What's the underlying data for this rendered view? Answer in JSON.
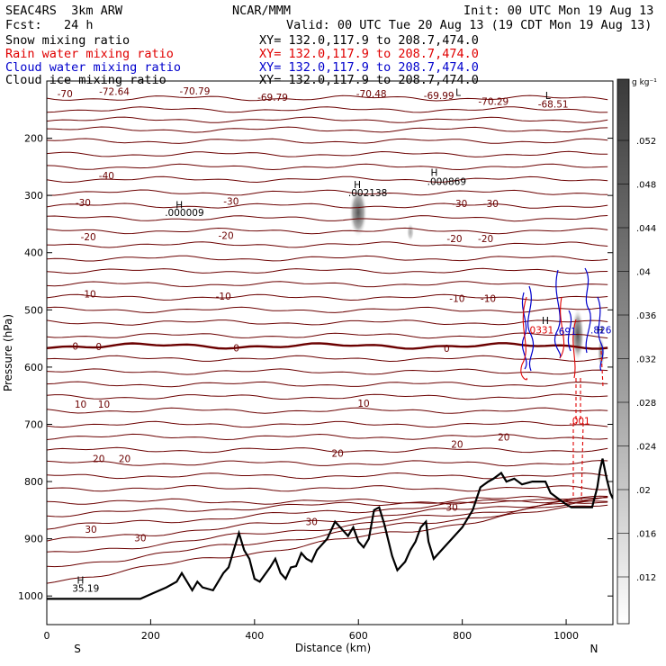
{
  "header": {
    "model": "SEAC4RS  3km ARW",
    "org": "NCAR/MMM",
    "init": "Init: 00 UTC Mon 19 Aug 13",
    "fcst": "Fcst:   24 h",
    "valid": "Valid: 00 UTC Tue 20 Aug 13 (19 CDT Mon 19 Aug 13)",
    "fields": [
      {
        "label": "Snow mixing ratio",
        "xy": "XY= 132.0,117.9 to 208.7,474.0",
        "color": "#000000"
      },
      {
        "label": "Rain water mixing ratio",
        "xy": "XY= 132.0,117.9 to 208.7,474.0",
        "color": "#e00000"
      },
      {
        "label": "Cloud water mixing ratio",
        "xy": "XY= 132.0,117.9 to 208.7,474.0",
        "color": "#0000cc"
      },
      {
        "label": "Cloud ice mixing ratio",
        "xy": "XY= 132.0,117.9 to 208.7,474.0",
        "color": "#000000"
      }
    ]
  },
  "chart_data": {
    "type": "contour",
    "xlabel": "Distance (km)",
    "ylabel": "Pressure (hPa)",
    "xlim": [
      0,
      1090
    ],
    "ylim": [
      1050,
      100
    ],
    "x_ticks": [
      "0",
      "200",
      "400",
      "600",
      "800",
      "1000"
    ],
    "y_ticks": [
      "200",
      "300",
      "400",
      "500",
      "600",
      "700",
      "800",
      "900",
      "1000"
    ],
    "x_end_labels": [
      "S",
      "N"
    ],
    "colorbar": {
      "unit": "g kg⁻¹",
      "labels": [
        ".052",
        ".048",
        ".044",
        ".04",
        ".036",
        ".032",
        ".028",
        ".024",
        ".02",
        ".016",
        ".012"
      ]
    },
    "temperature_contours_C": [
      -70,
      -60,
      -50,
      -40,
      -30,
      -20,
      -10,
      0,
      10,
      20,
      30
    ],
    "contour_labels": [
      {
        "text": "-70",
        "x": 35,
        "p": 122
      },
      {
        "text": "-72.64",
        "x": 130,
        "p": 118
      },
      {
        "text": "-70.79",
        "x": 285,
        "p": 117
      },
      {
        "text": "-69.79",
        "x": 435,
        "p": 128
      },
      {
        "text": "-70.48",
        "x": 625,
        "p": 122
      },
      {
        "text": "-69.99",
        "x": 755,
        "p": 125
      },
      {
        "text": "-70.29",
        "x": 860,
        "p": 135
      },
      {
        "text": "-68.51",
        "x": 975,
        "p": 140
      },
      {
        "text": "-40",
        "x": 115,
        "p": 265
      },
      {
        "text": "-30",
        "x": 70,
        "p": 312
      },
      {
        "text": "-30",
        "x": 355,
        "p": 310
      },
      {
        "text": "-30",
        "x": 795,
        "p": 314
      },
      {
        "text": "-30",
        "x": 855,
        "p": 314
      },
      {
        "text": "-20",
        "x": 80,
        "p": 372
      },
      {
        "text": "-20",
        "x": 345,
        "p": 370
      },
      {
        "text": "-20",
        "x": 785,
        "p": 375
      },
      {
        "text": "-20",
        "x": 845,
        "p": 375
      },
      {
        "text": "-10",
        "x": 80,
        "p": 472
      },
      {
        "text": "-10",
        "x": 340,
        "p": 476
      },
      {
        "text": "-10",
        "x": 790,
        "p": 480
      },
      {
        "text": "-10",
        "x": 850,
        "p": 480
      },
      {
        "text": "0",
        "x": 55,
        "p": 563
      },
      {
        "text": "0",
        "x": 100,
        "p": 564
      },
      {
        "text": "0",
        "x": 365,
        "p": 566
      },
      {
        "text": "0",
        "x": 770,
        "p": 567
      },
      {
        "text": "10",
        "x": 65,
        "p": 665
      },
      {
        "text": "10",
        "x": 110,
        "p": 665
      },
      {
        "text": "10",
        "x": 610,
        "p": 663
      },
      {
        "text": "20",
        "x": 100,
        "p": 760
      },
      {
        "text": "20",
        "x": 150,
        "p": 760
      },
      {
        "text": "20",
        "x": 560,
        "p": 750
      },
      {
        "text": "20",
        "x": 790,
        "p": 735
      },
      {
        "text": "20",
        "x": 880,
        "p": 722
      },
      {
        "text": "30",
        "x": 85,
        "p": 883
      },
      {
        "text": "30",
        "x": 180,
        "p": 898
      },
      {
        "text": "30",
        "x": 510,
        "p": 870
      },
      {
        "text": "30",
        "x": 780,
        "p": 845
      }
    ],
    "extrema_labels": [
      {
        "text": "H",
        "x": 255,
        "p": 316
      },
      {
        "text": ".000009",
        "x": 265,
        "p": 330
      },
      {
        "text": "H",
        "x": 598,
        "p": 281
      },
      {
        "text": ".002138",
        "x": 618,
        "p": 295
      },
      {
        "text": "H",
        "x": 746,
        "p": 260
      },
      {
        "text": ".000869",
        "x": 770,
        "p": 275
      },
      {
        "text": "H",
        "x": 65,
        "p": 972
      },
      {
        "text": "35.19",
        "x": 75,
        "p": 986
      },
      {
        "text": "L",
        "x": 792,
        "p": 120
      },
      {
        "text": "L",
        "x": 965,
        "p": 125
      },
      {
        "text": "H",
        "x": 960,
        "p": 518
      },
      {
        "text": ".0331",
        "x": 950,
        "p": 535
      },
      {
        "text": ".691",
        "x": 1000,
        "p": 537
      },
      {
        "text": "H",
        "x": 1065,
        "p": 535
      },
      {
        "text": ".826",
        "x": 1067,
        "p": 535
      },
      {
        "text": ".001",
        "x": 1026,
        "p": 694
      }
    ],
    "terrain_km_hPa": [
      [
        0,
        1005
      ],
      [
        180,
        1005
      ],
      [
        205,
        995
      ],
      [
        230,
        985
      ],
      [
        250,
        975
      ],
      [
        260,
        960
      ],
      [
        270,
        975
      ],
      [
        280,
        990
      ],
      [
        290,
        975
      ],
      [
        300,
        985
      ],
      [
        320,
        990
      ],
      [
        340,
        960
      ],
      [
        350,
        950
      ],
      [
        360,
        920
      ],
      [
        370,
        890
      ],
      [
        380,
        920
      ],
      [
        390,
        935
      ],
      [
        400,
        970
      ],
      [
        410,
        975
      ],
      [
        430,
        950
      ],
      [
        440,
        935
      ],
      [
        450,
        960
      ],
      [
        460,
        970
      ],
      [
        470,
        950
      ],
      [
        480,
        948
      ],
      [
        490,
        925
      ],
      [
        500,
        935
      ],
      [
        510,
        940
      ],
      [
        520,
        920
      ],
      [
        540,
        900
      ],
      [
        555,
        870
      ],
      [
        565,
        880
      ],
      [
        580,
        895
      ],
      [
        590,
        880
      ],
      [
        600,
        905
      ],
      [
        610,
        915
      ],
      [
        620,
        900
      ],
      [
        630,
        850
      ],
      [
        640,
        845
      ],
      [
        650,
        875
      ],
      [
        665,
        930
      ],
      [
        675,
        955
      ],
      [
        690,
        940
      ],
      [
        700,
        920
      ],
      [
        710,
        905
      ],
      [
        720,
        880
      ],
      [
        730,
        870
      ],
      [
        735,
        905
      ],
      [
        745,
        935
      ],
      [
        760,
        920
      ],
      [
        780,
        900
      ],
      [
        800,
        880
      ],
      [
        820,
        850
      ],
      [
        835,
        810
      ],
      [
        850,
        800
      ],
      [
        860,
        795
      ],
      [
        875,
        785
      ],
      [
        885,
        800
      ],
      [
        900,
        795
      ],
      [
        915,
        805
      ],
      [
        935,
        800
      ],
      [
        960,
        800
      ],
      [
        970,
        820
      ],
      [
        985,
        830
      ],
      [
        1000,
        840
      ],
      [
        1010,
        845
      ],
      [
        1020,
        845
      ],
      [
        1050,
        845
      ],
      [
        1060,
        810
      ],
      [
        1065,
        780
      ],
      [
        1070,
        760
      ],
      [
        1078,
        795
      ],
      [
        1085,
        820
      ],
      [
        1090,
        830
      ]
    ]
  }
}
